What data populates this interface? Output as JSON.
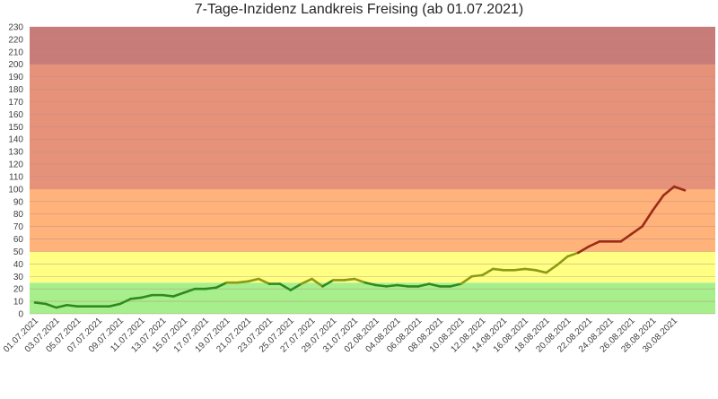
{
  "chart_data": {
    "type": "line",
    "title": "7-Tage-Inzidenz Landkreis Freising (ab 01.07.2021)",
    "xlabel": "",
    "ylabel": "",
    "ylim": [
      0,
      230
    ],
    "yticks": [
      0,
      10,
      20,
      30,
      40,
      50,
      60,
      70,
      80,
      90,
      100,
      110,
      120,
      130,
      140,
      150,
      160,
      170,
      180,
      190,
      200,
      210,
      220,
      230
    ],
    "grid": true,
    "legend": "none",
    "x_tick_labels": [
      "01.07.2021",
      "03.07.2021",
      "05.07.2021",
      "07.07.2021",
      "09.07.2021",
      "11.07.2021",
      "13.07.2021",
      "15.07.2021",
      "17.07.2021",
      "19.07.2021",
      "21.07.2021",
      "23.07.2021",
      "25.07.2021",
      "27.07.2021",
      "29.07.2021",
      "31.07.2021",
      "02.08.2021",
      "04.08.2021",
      "06.08.2021",
      "08.08.2021",
      "10.08.2021",
      "12.08.2021",
      "14.08.2021",
      "16.08.2021",
      "18.08.2021",
      "20.08.2021",
      "22.08.2021",
      "24.08.2021",
      "26.08.2021",
      "28.08.2021",
      "30.08.2021"
    ],
    "x": [
      "01.07.2021",
      "02.07.2021",
      "03.07.2021",
      "04.07.2021",
      "05.07.2021",
      "06.07.2021",
      "07.07.2021",
      "08.07.2021",
      "09.07.2021",
      "10.07.2021",
      "11.07.2021",
      "12.07.2021",
      "13.07.2021",
      "14.07.2021",
      "15.07.2021",
      "16.07.2021",
      "17.07.2021",
      "18.07.2021",
      "19.07.2021",
      "20.07.2021",
      "21.07.2021",
      "22.07.2021",
      "23.07.2021",
      "24.07.2021",
      "25.07.2021",
      "26.07.2021",
      "27.07.2021",
      "28.07.2021",
      "29.07.2021",
      "30.07.2021",
      "31.07.2021",
      "01.08.2021",
      "02.08.2021",
      "03.08.2021",
      "04.08.2021",
      "05.08.2021",
      "06.08.2021",
      "07.08.2021",
      "08.08.2021",
      "09.08.2021",
      "10.08.2021",
      "11.08.2021",
      "12.08.2021",
      "13.08.2021",
      "14.08.2021",
      "15.08.2021",
      "16.08.2021",
      "17.08.2021",
      "18.08.2021",
      "19.08.2021",
      "20.08.2021",
      "21.08.2021",
      "22.08.2021",
      "23.08.2021",
      "24.08.2021",
      "25.08.2021",
      "26.08.2021",
      "27.08.2021",
      "28.08.2021",
      "29.08.2021",
      "30.08.2021",
      "31.08.2021"
    ],
    "series": [
      {
        "values": [
          9,
          8,
          5,
          7,
          6,
          6,
          6,
          6,
          8,
          12,
          13,
          15,
          15,
          14,
          17,
          20,
          20,
          21,
          25,
          25,
          26,
          28,
          24,
          24,
          19,
          24,
          28,
          22,
          27,
          27,
          28,
          25,
          23,
          22,
          23,
          22,
          22,
          24,
          22,
          22,
          24,
          30,
          31,
          36,
          35,
          35,
          36,
          35,
          33,
          39,
          46,
          49,
          54,
          58,
          58,
          58,
          64,
          70,
          83,
          95,
          102,
          99
        ],
        "segment_colors": {
          "low": "#2f8a1e",
          "mid": "#8c9a14",
          "high": "#9a2d18"
        }
      }
    ],
    "bands": [
      {
        "from": 0,
        "to": 25,
        "color": "#a6ef8c"
      },
      {
        "from": 25,
        "to": 50,
        "color": "#ffff84"
      },
      {
        "from": 50,
        "to": 100,
        "color": "#ffb27a"
      },
      {
        "from": 100,
        "to": 200,
        "color": "#e6927a"
      },
      {
        "from": 200,
        "to": 230,
        "color": "#c87c7a"
      }
    ],
    "grid_color": "#b98a80"
  }
}
